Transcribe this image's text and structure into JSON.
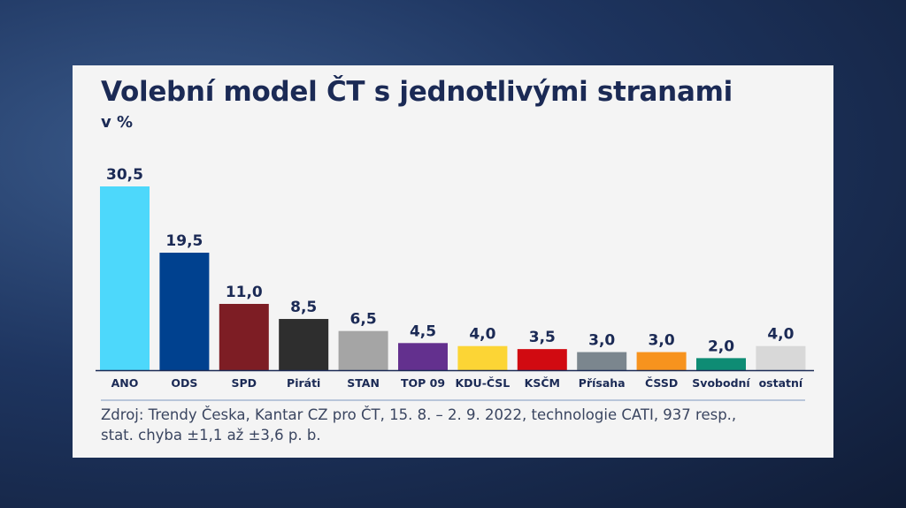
{
  "chart_data": {
    "type": "bar",
    "title": "Volební model ČT s jednotlivými stranami",
    "subtitle": "v %",
    "categories": [
      "ANO",
      "ODS",
      "SPD",
      "Piráti",
      "STAN",
      "TOP 09",
      "KDU-ČSL",
      "KSČM",
      "Přísaha",
      "ČSSD",
      "Svobodní",
      "ostatní"
    ],
    "values": [
      30.5,
      19.5,
      11.0,
      8.5,
      6.5,
      4.5,
      4.0,
      3.5,
      3.0,
      3.0,
      2.0,
      4.0
    ],
    "value_labels": [
      "30,5",
      "19,5",
      "11,0",
      "8,5",
      "6,5",
      "4,5",
      "4,0",
      "3,5",
      "3,0",
      "3,0",
      "2,0",
      "4,0"
    ],
    "colors": [
      "#4dd8fb",
      "#00418f",
      "#7d1d24",
      "#2e2e2e",
      "#a5a5a5",
      "#63308e",
      "#fcd535",
      "#d10a11",
      "#7b868e",
      "#f7931e",
      "#0e8c74",
      "#d8d8d8"
    ],
    "xlabel": "",
    "ylabel": "",
    "ylim": [
      0,
      31
    ],
    "grid": false,
    "legend": "none"
  },
  "source": {
    "line1": "Zdroj: Trendy Česka, Kantar CZ pro ČT, 15. 8. – 2. 9. 2022, technologie CATI, 937 resp.,",
    "line2": "stat. chyba ±1,1 až ±3,6 p. b."
  }
}
